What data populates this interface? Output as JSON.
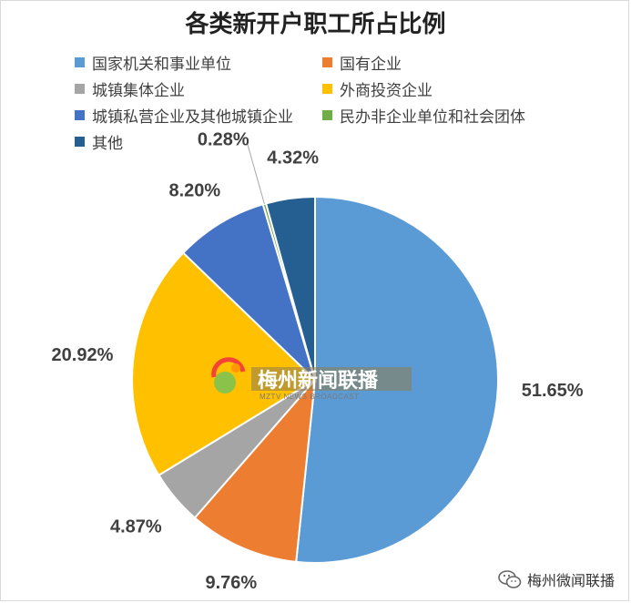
{
  "chart_data": {
    "type": "pie",
    "title": "各类新开户职工所占比例",
    "legend_position": "top",
    "unit": "%",
    "slices": [
      {
        "name": "国家机关和事业单位",
        "value": 51.65,
        "label": "51.65%",
        "color": "#5b9bd5"
      },
      {
        "name": "国有企业",
        "value": 9.76,
        "label": "9.76%",
        "color": "#ed7d31"
      },
      {
        "name": "城镇集体企业",
        "value": 4.87,
        "label": "4.87%",
        "color": "#a5a5a5"
      },
      {
        "name": "外商投资企业",
        "value": 20.92,
        "label": "20.92%",
        "color": "#ffc000"
      },
      {
        "name": "城镇私营企业及其他城镇企业",
        "value": 8.2,
        "label": "8.20%",
        "color": "#4472c4"
      },
      {
        "name": "民办非企业单位和社会团体",
        "value": 0.28,
        "label": "0.28%",
        "color": "#70ad47"
      },
      {
        "name": "其他",
        "value": 4.32,
        "label": "4.32%",
        "color": "#255e91"
      }
    ]
  },
  "watermark": {
    "main": "梅州新闻联播",
    "sub": "MZTV NEWS BROADCAST"
  },
  "footer": {
    "brand": "梅州微闻联播",
    "icon": "wechat-icon"
  }
}
